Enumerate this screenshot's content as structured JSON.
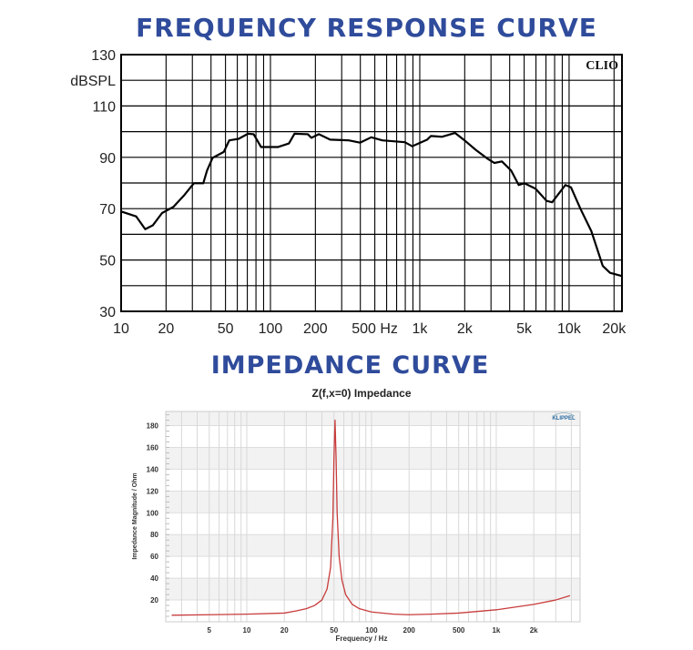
{
  "headings": {
    "frequency_response": "FREQUENCY RESPONSE CURVE",
    "impedance": "IMPEDANCE CURVE"
  },
  "colors": {
    "heading": "#2f4b9b",
    "fr_line": "#000000",
    "imp_line": "#c83c3c"
  },
  "chart_data": [
    {
      "type": "line",
      "title": "FREQUENCY RESPONSE CURVE",
      "brand": "CLIO",
      "xlabel": "Hz",
      "ylabel": "dBSPL",
      "xscale": "log",
      "xlim": [
        10,
        22600
      ],
      "ylim": [
        30,
        130
      ],
      "grid": true,
      "xticks": [
        {
          "v": 10,
          "l": "10"
        },
        {
          "v": 20,
          "l": "20"
        },
        {
          "v": 50,
          "l": "50"
        },
        {
          "v": 100,
          "l": "100"
        },
        {
          "v": 200,
          "l": "200"
        },
        {
          "v": 500,
          "l": "500 Hz"
        },
        {
          "v": 1000,
          "l": "1k"
        },
        {
          "v": 2000,
          "l": "2k"
        },
        {
          "v": 5000,
          "l": "5k"
        },
        {
          "v": 10000,
          "l": "10k"
        },
        {
          "v": 20000,
          "l": "20k"
        }
      ],
      "yticks": [
        {
          "v": 130,
          "l": "130"
        },
        {
          "v": 120,
          "l": "dBSPL"
        },
        {
          "v": 110,
          "l": "110"
        },
        {
          "v": 90,
          "l": "90"
        },
        {
          "v": 70,
          "l": "70"
        },
        {
          "v": 50,
          "l": "50"
        },
        {
          "v": 30,
          "l": "30"
        }
      ],
      "series": [
        {
          "name": "SPL",
          "x": [
            10,
            12.6,
            14.5,
            16.3,
            18.8,
            22.4,
            26.6,
            30.7,
            35.5,
            37.6,
            41,
            48.7,
            53,
            61.2,
            70.8,
            77.2,
            86.6,
            112,
            133,
            145,
            178,
            188,
            211,
            251,
            335,
            398,
            473,
            562,
            794,
            891,
            1122,
            1188,
            1413,
            1722,
            1995,
            2371,
            2818,
            3162,
            3548,
            4097,
            4600,
            5012,
            5957,
            7079,
            7700,
            8414,
            9440,
            10300,
            11900,
            14100,
            16800,
            18800,
            22400
          ],
          "y": [
            68.9,
            67,
            62,
            63.5,
            68.3,
            70.7,
            75.4,
            79.9,
            79.9,
            84.8,
            89.8,
            92.1,
            96.6,
            97.2,
            99.2,
            99,
            94,
            94,
            95.4,
            99.2,
            99,
            97.6,
            99,
            96.9,
            96.6,
            95.7,
            97.8,
            96.6,
            95.9,
            94.3,
            96.9,
            98.3,
            98,
            99.5,
            96.6,
            92.9,
            89.6,
            87.8,
            88.4,
            84.8,
            79.2,
            79.9,
            77.8,
            73,
            72.5,
            75.4,
            79.2,
            78.3,
            70,
            61.2,
            47.7,
            45,
            43.8
          ]
        }
      ]
    },
    {
      "type": "line",
      "title": "Z(f,x=0) Impedance",
      "brand": "KLIPPEL",
      "xlabel": "Frequency / Hz",
      "ylabel": "Impedance Magnitude / Ohm",
      "xscale": "log",
      "xlim": [
        2.24,
        4700
      ],
      "ylim": [
        0,
        193
      ],
      "grid": true,
      "xticks": [
        {
          "v": 5,
          "l": "5"
        },
        {
          "v": 10,
          "l": "10"
        },
        {
          "v": 20,
          "l": "20"
        },
        {
          "v": 50,
          "l": "50"
        },
        {
          "v": 100,
          "l": "100"
        },
        {
          "v": 200,
          "l": "200"
        },
        {
          "v": 500,
          "l": "500"
        },
        {
          "v": 1000,
          "l": "1k"
        },
        {
          "v": 2000,
          "l": "2k"
        }
      ],
      "yticks": [
        {
          "v": 20,
          "l": "20"
        },
        {
          "v": 40,
          "l": "40"
        },
        {
          "v": 60,
          "l": "60"
        },
        {
          "v": 80,
          "l": "80"
        },
        {
          "v": 100,
          "l": "100"
        },
        {
          "v": 120,
          "l": "120"
        },
        {
          "v": 140,
          "l": "140"
        },
        {
          "v": 160,
          "l": "160"
        },
        {
          "v": 180,
          "l": "180"
        }
      ],
      "series": [
        {
          "name": "Impedance",
          "x": [
            2.5,
            5,
            10,
            20,
            25,
            30,
            35,
            40,
            44,
            47,
            49,
            50,
            51,
            52,
            53,
            55,
            58,
            62,
            70,
            80,
            100,
            150,
            200,
            300,
            500,
            1000,
            2000,
            3000,
            3900
          ],
          "y": [
            6,
            6.5,
            7,
            8,
            10,
            12,
            15,
            20,
            30,
            50,
            95,
            150,
            185,
            150,
            100,
            60,
            38,
            25,
            16,
            12,
            9,
            7,
            6.5,
            7,
            8,
            11,
            16,
            20,
            24
          ]
        }
      ]
    }
  ]
}
